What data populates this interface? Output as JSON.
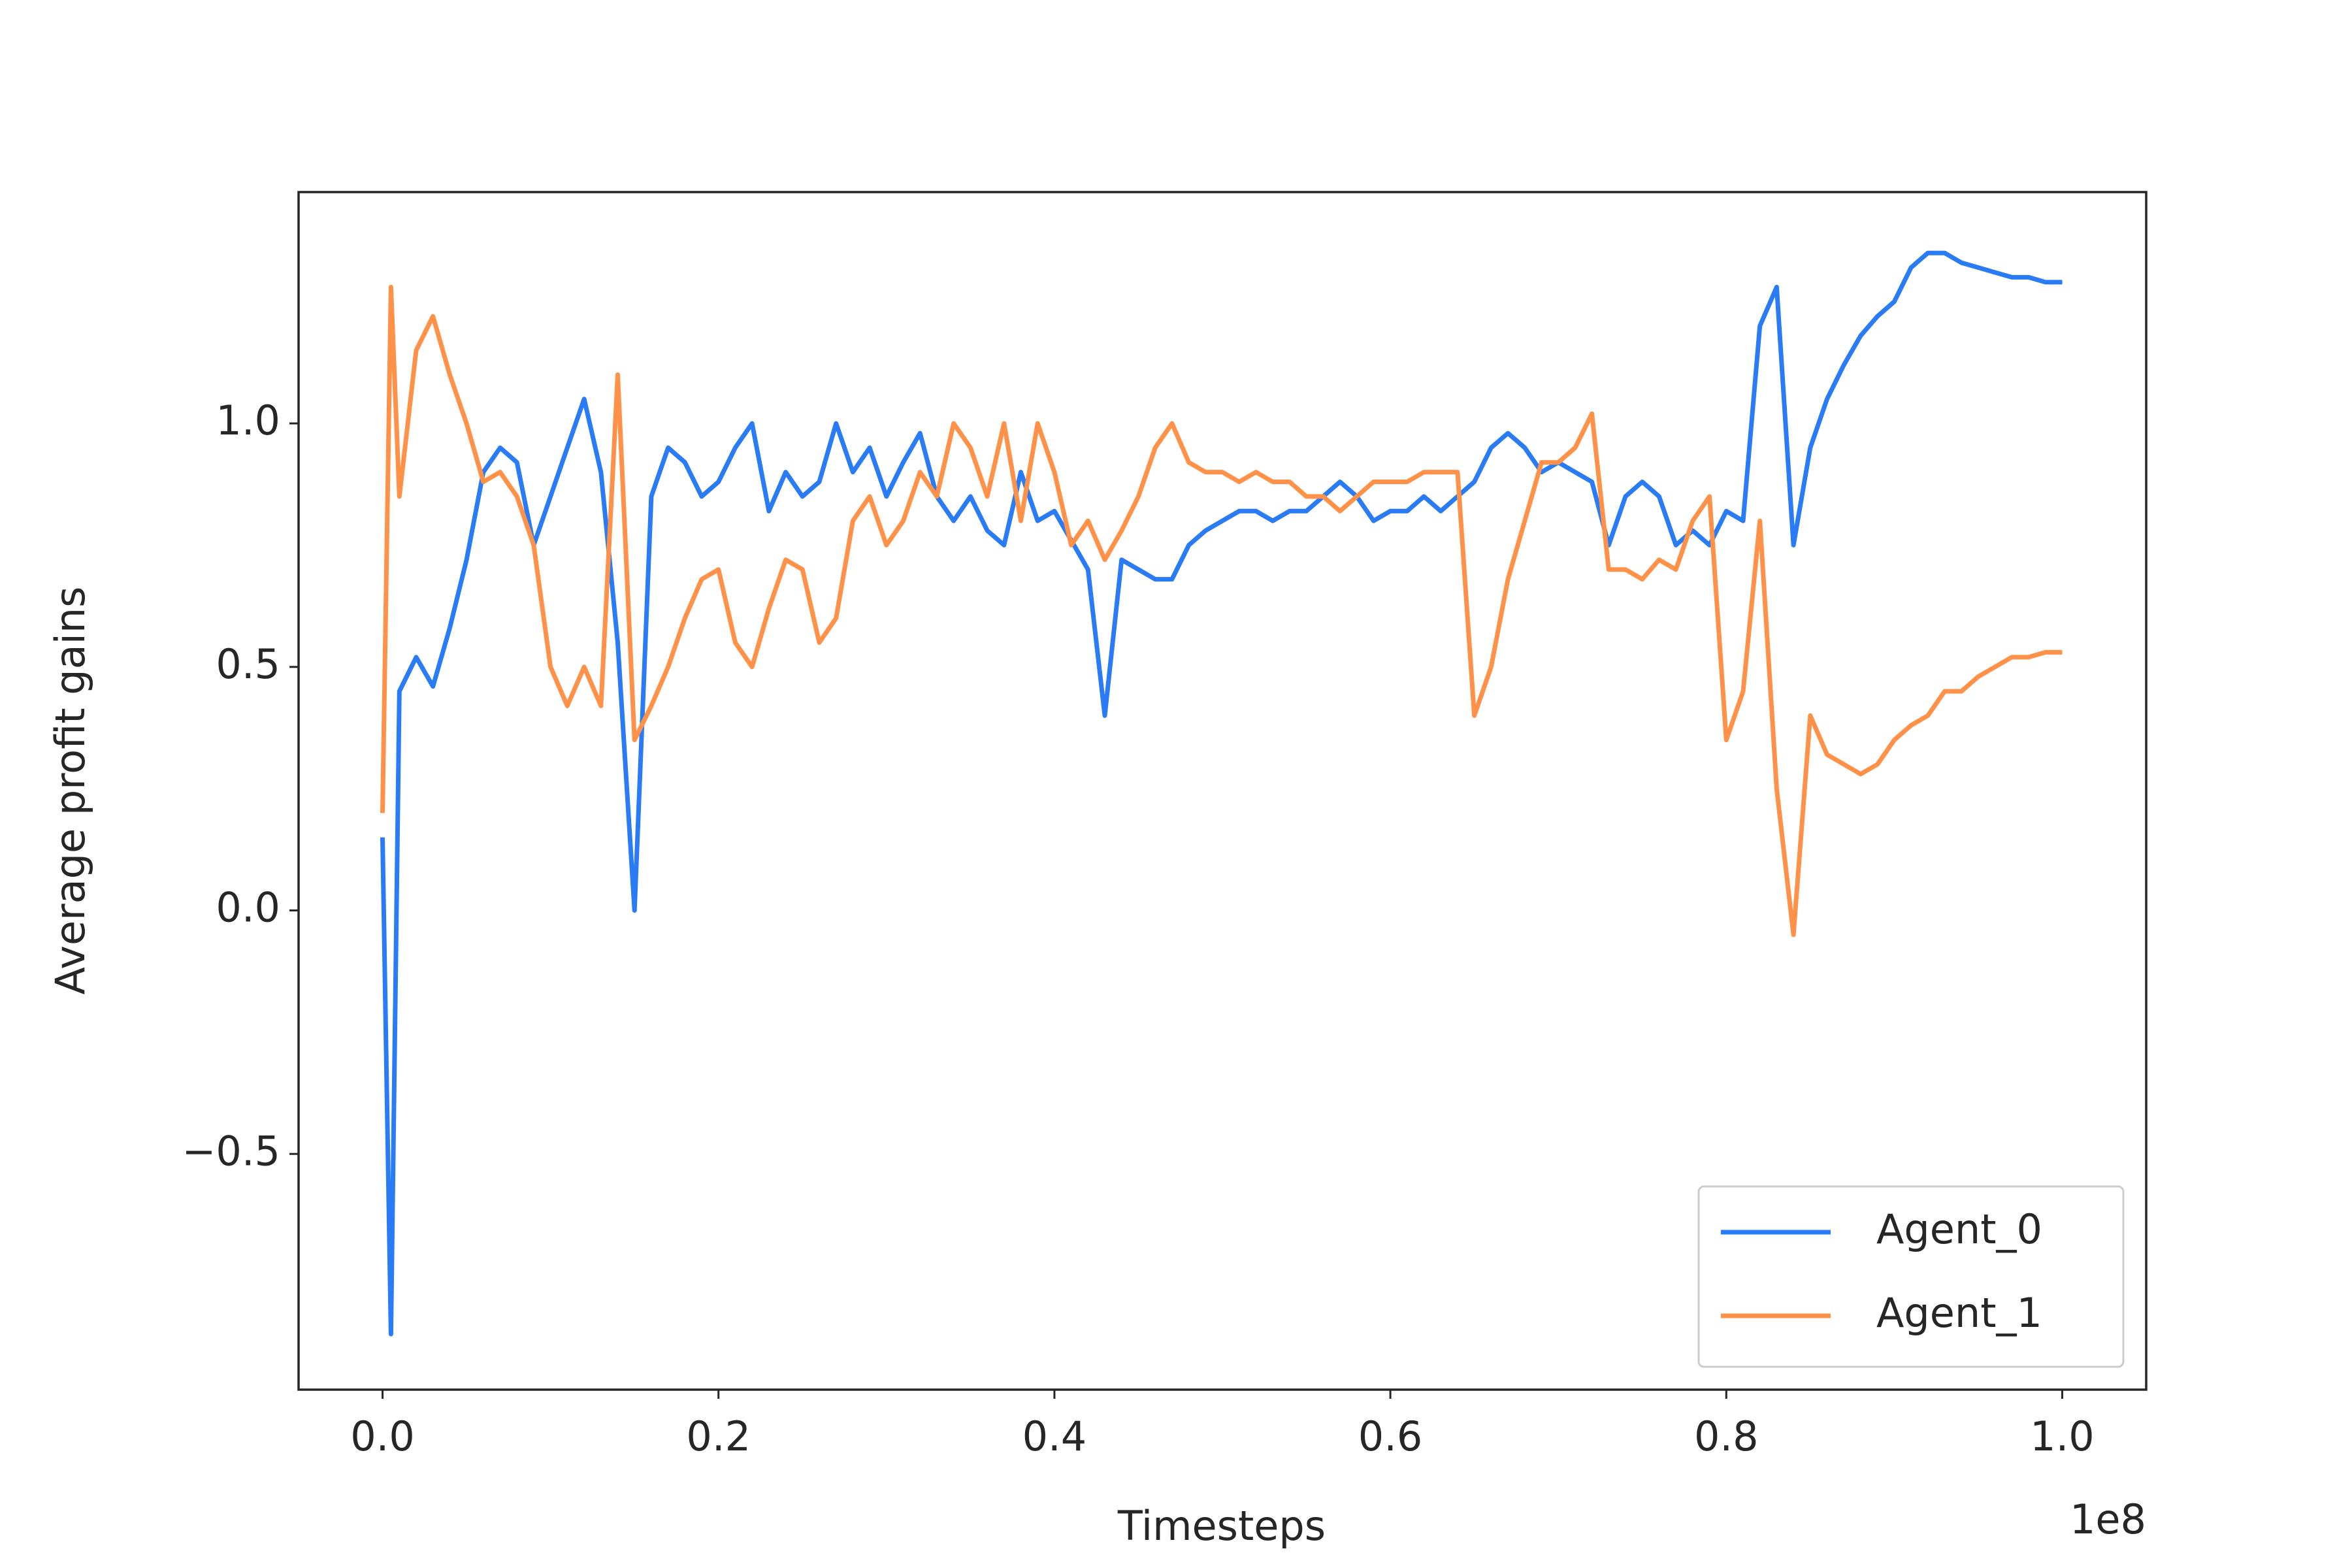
{
  "chart_data": {
    "type": "line",
    "xlabel": "Timesteps",
    "ylabel": "Average profit gains",
    "x_offset": "1e8",
    "x": [
      0,
      0.005,
      0.01,
      0.02,
      0.03,
      0.04,
      0.05,
      0.06,
      0.07,
      0.08,
      0.09,
      0.1,
      0.11,
      0.12,
      0.13,
      0.14,
      0.15,
      0.16,
      0.17,
      0.18,
      0.19,
      0.2,
      0.21,
      0.22,
      0.23,
      0.24,
      0.25,
      0.26,
      0.27,
      0.28,
      0.29,
      0.3,
      0.31,
      0.32,
      0.33,
      0.34,
      0.35,
      0.36,
      0.37,
      0.38,
      0.39,
      0.4,
      0.41,
      0.42,
      0.43,
      0.44,
      0.45,
      0.46,
      0.47,
      0.48,
      0.49,
      0.5,
      0.51,
      0.52,
      0.53,
      0.54,
      0.55,
      0.56,
      0.57,
      0.58,
      0.59,
      0.6,
      0.61,
      0.62,
      0.63,
      0.64,
      0.65,
      0.66,
      0.67,
      0.68,
      0.69,
      0.7,
      0.71,
      0.72,
      0.73,
      0.74,
      0.75,
      0.76,
      0.77,
      0.78,
      0.79,
      0.8,
      0.81,
      0.82,
      0.83,
      0.84,
      0.85,
      0.86,
      0.87,
      0.88,
      0.89,
      0.9,
      0.91,
      0.92,
      0.93,
      0.94,
      0.95,
      0.96,
      0.97,
      0.98,
      0.99,
      1.0
    ],
    "series": [
      {
        "name": "Agent_0",
        "color": "#2a7bf6",
        "values": [
          0.15,
          -0.87,
          0.45,
          0.52,
          0.46,
          0.58,
          0.72,
          0.9,
          0.95,
          0.92,
          0.75,
          0.85,
          0.95,
          1.05,
          0.9,
          0.55,
          0.0,
          0.85,
          0.95,
          0.92,
          0.85,
          0.88,
          0.95,
          1.0,
          0.82,
          0.9,
          0.85,
          0.88,
          1.0,
          0.9,
          0.95,
          0.85,
          0.92,
          0.98,
          0.85,
          0.8,
          0.85,
          0.78,
          0.75,
          0.9,
          0.8,
          0.82,
          0.76,
          0.7,
          0.4,
          0.72,
          0.7,
          0.68,
          0.68,
          0.75,
          0.78,
          0.8,
          0.82,
          0.82,
          0.8,
          0.82,
          0.82,
          0.85,
          0.88,
          0.85,
          0.8,
          0.82,
          0.82,
          0.85,
          0.82,
          0.85,
          0.88,
          0.95,
          0.98,
          0.95,
          0.9,
          0.92,
          0.9,
          0.88,
          0.75,
          0.85,
          0.88,
          0.85,
          0.75,
          0.78,
          0.75,
          0.82,
          0.8,
          1.2,
          1.28,
          0.75,
          0.95,
          1.05,
          1.12,
          1.18,
          1.22,
          1.25,
          1.32,
          1.35,
          1.35,
          1.33,
          1.32,
          1.31,
          1.3,
          1.3,
          1.29,
          1.29
        ]
      },
      {
        "name": "Agent_1",
        "color": "#ff9148",
        "values": [
          0.2,
          1.28,
          0.85,
          1.15,
          1.22,
          1.1,
          1.0,
          0.88,
          0.9,
          0.85,
          0.75,
          0.5,
          0.42,
          0.5,
          0.42,
          1.1,
          0.35,
          0.42,
          0.5,
          0.6,
          0.68,
          0.7,
          0.55,
          0.5,
          0.62,
          0.72,
          0.7,
          0.55,
          0.6,
          0.8,
          0.85,
          0.75,
          0.8,
          0.9,
          0.85,
          1.0,
          0.95,
          0.85,
          1.0,
          0.8,
          1.0,
          0.9,
          0.75,
          0.8,
          0.72,
          0.78,
          0.85,
          0.95,
          1.0,
          0.92,
          0.9,
          0.9,
          0.88,
          0.9,
          0.88,
          0.88,
          0.85,
          0.85,
          0.82,
          0.85,
          0.88,
          0.88,
          0.88,
          0.9,
          0.9,
          0.9,
          0.4,
          0.5,
          0.68,
          0.8,
          0.92,
          0.92,
          0.95,
          1.02,
          0.7,
          0.7,
          0.68,
          0.72,
          0.7,
          0.8,
          0.85,
          0.35,
          0.45,
          0.8,
          0.25,
          -0.05,
          0.4,
          0.32,
          0.3,
          0.28,
          0.3,
          0.35,
          0.38,
          0.4,
          0.45,
          0.45,
          0.48,
          0.5,
          0.52,
          0.52,
          0.53,
          0.53
        ]
      }
    ],
    "xlim": [
      -0.05,
      1.05
    ],
    "ylim": [
      -0.984,
      1.475
    ],
    "xticks": [
      {
        "value": 0,
        "label": "0.0"
      },
      0.2,
      0.4,
      0.6,
      0.8,
      {
        "value": 1,
        "label": "1.0"
      }
    ],
    "yticks": [
      {
        "value": -0.5,
        "label": "−0.5"
      },
      {
        "value": 0,
        "label": "0.0"
      },
      0.5,
      {
        "value": 1,
        "label": "1.0"
      }
    ],
    "grid": false,
    "legend": "lower right"
  }
}
